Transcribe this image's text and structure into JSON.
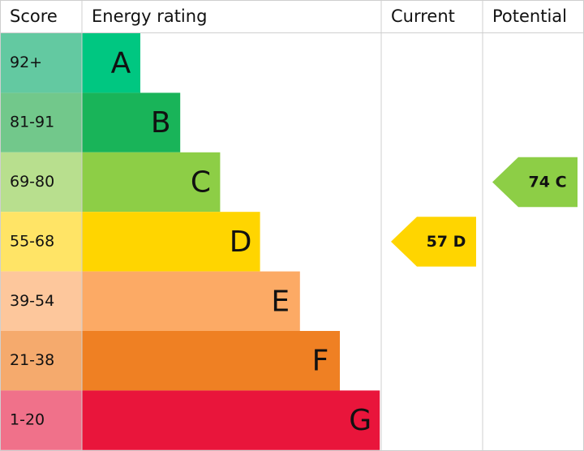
{
  "header": [
    "Score",
    "Energy rating",
    "Current",
    "Potential"
  ],
  "bands": [
    {
      "score": "92+",
      "letter": "A",
      "color": "#00c781",
      "score_color": "#63c9a1"
    },
    {
      "score": "81-91",
      "letter": "B",
      "color": "#19b459",
      "score_color": "#72c88b"
    },
    {
      "score": "69-80",
      "letter": "C",
      "color": "#8dce46",
      "score_color": "#b8df8e"
    },
    {
      "score": "55-68",
      "letter": "D",
      "color": "#ffd500",
      "score_color": "#ffe466"
    },
    {
      "score": "39-54",
      "letter": "E",
      "color": "#fcaa65",
      "score_color": "#fdc79c"
    },
    {
      "score": "21-38",
      "letter": "F",
      "color": "#ef8023",
      "score_color": "#f5aa6d"
    },
    {
      "score": "1-20",
      "letter": "G",
      "color": "#e9153b",
      "score_color": "#f0718a"
    }
  ],
  "current": {
    "score": 57,
    "rating": "D"
  },
  "potential": {
    "score": 74,
    "rating": "C"
  }
}
